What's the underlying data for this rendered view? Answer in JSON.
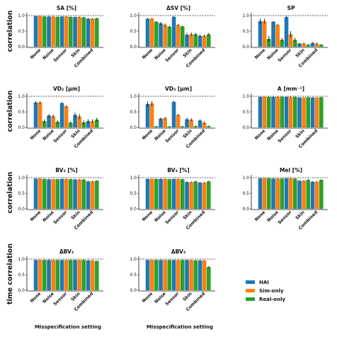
{
  "colors": {
    "HAI": "#1f77b4",
    "Sim-only": "#ff7f0e",
    "Real-only": "#2ca02c"
  },
  "figure": {
    "row_ylabels": [
      "correlation",
      "correlation",
      "correlation",
      "time correlation"
    ],
    "xlabel": "Misspecification setting",
    "legend": [
      "HAI",
      "Sim-only",
      "Real-only"
    ]
  },
  "chart_data": [
    {
      "type": "bar",
      "title": "SA [%]",
      "ylim": [
        0,
        1.0
      ],
      "yticks": [
        "0.0",
        "0.5",
        "1.0"
      ],
      "reference_line": 1.0,
      "categories": [
        "None",
        "Noise",
        "Sensor",
        "Skin",
        "Combined"
      ],
      "series": [
        {
          "name": "HAI",
          "values": [
            0.98,
            0.97,
            0.97,
            0.95,
            0.9
          ],
          "errors": [
            0.01,
            0.01,
            0.01,
            0.02,
            0.02
          ]
        },
        {
          "name": "Sim-only",
          "values": [
            0.98,
            0.97,
            0.97,
            0.95,
            0.9
          ],
          "errors": [
            0.01,
            0.01,
            0.01,
            0.02,
            0.02
          ]
        },
        {
          "name": "Real-only",
          "values": [
            0.97,
            0.96,
            0.96,
            0.94,
            0.91
          ],
          "errors": [
            0.01,
            0.01,
            0.01,
            0.02,
            0.02
          ]
        }
      ]
    },
    {
      "type": "bar",
      "title": "ΔSV [%]",
      "ylim": [
        0,
        1.0
      ],
      "yticks": [
        "0.0",
        "0.5",
        "1.0"
      ],
      "reference_line": 1.0,
      "categories": [
        "None",
        "Noise",
        "Sensor",
        "Skin",
        "Combined"
      ],
      "series": [
        {
          "name": "HAI",
          "values": [
            0.9,
            0.75,
            0.96,
            0.38,
            0.35
          ],
          "errors": [
            0.02,
            0.05,
            0.02,
            0.06,
            0.04
          ]
        },
        {
          "name": "Sim-only",
          "values": [
            0.9,
            0.7,
            0.7,
            0.4,
            0.35
          ],
          "errors": [
            0.02,
            0.05,
            0.03,
            0.06,
            0.04
          ]
        },
        {
          "name": "Real-only",
          "values": [
            0.8,
            0.64,
            0.65,
            0.4,
            0.4
          ],
          "errors": [
            0.02,
            0.04,
            0.03,
            0.05,
            0.04
          ]
        }
      ]
    },
    {
      "type": "bar",
      "title": "SP",
      "ylim": [
        0,
        1.0
      ],
      "yticks": [
        "0.0",
        "0.5",
        "1.0"
      ],
      "reference_line": 1.0,
      "categories": [
        "None",
        "Noise",
        "Sensor",
        "Skin",
        "Combined"
      ],
      "series": [
        {
          "name": "HAI",
          "values": [
            0.82,
            0.8,
            0.95,
            0.1,
            0.12
          ],
          "errors": [
            0.08,
            0.03,
            0.04,
            0.03,
            0.03
          ]
        },
        {
          "name": "Sim-only",
          "values": [
            0.82,
            0.7,
            0.4,
            0.1,
            0.1
          ],
          "errors": [
            0.08,
            0.03,
            0.1,
            0.03,
            0.03
          ]
        },
        {
          "name": "Real-only",
          "values": [
            0.25,
            0.22,
            0.22,
            0.06,
            0.06
          ],
          "errors": [
            0.1,
            0.06,
            0.06,
            0.03,
            0.03
          ]
        }
      ]
    },
    {
      "type": "bar",
      "title": "VD₂ [μm]",
      "ylim": [
        0,
        1.0
      ],
      "yticks": [
        "0.0",
        "0.5",
        "1.0"
      ],
      "reference_line": 1.0,
      "categories": [
        "None",
        "Noise",
        "Sensor",
        "Skin",
        "Combined"
      ],
      "series": [
        {
          "name": "HAI",
          "values": [
            0.8,
            0.38,
            0.78,
            0.4,
            0.2
          ],
          "errors": [
            0.04,
            0.05,
            0.03,
            0.08,
            0.06
          ]
        },
        {
          "name": "Sim-only",
          "values": [
            0.8,
            0.36,
            0.68,
            0.35,
            0.2
          ],
          "errors": [
            0.04,
            0.05,
            0.03,
            0.08,
            0.06
          ]
        },
        {
          "name": "Real-only",
          "values": [
            0.2,
            0.18,
            0.15,
            0.16,
            0.25
          ],
          "errors": [
            0.06,
            0.06,
            0.05,
            0.06,
            0.06
          ]
        }
      ]
    },
    {
      "type": "bar",
      "title": "VD₃ [μm]",
      "ylim": [
        0,
        1.0
      ],
      "yticks": [
        "0.0",
        "0.5",
        "1.0"
      ],
      "reference_line": 1.0,
      "categories": [
        "None",
        "Noise",
        "Sensor",
        "Skin",
        "Combined"
      ],
      "series": [
        {
          "name": "HAI",
          "values": [
            0.75,
            0.28,
            0.82,
            0.26,
            0.22
          ],
          "errors": [
            0.08,
            0.04,
            0.02,
            0.05,
            0.04
          ]
        },
        {
          "name": "Sim-only",
          "values": [
            0.77,
            0.3,
            0.4,
            0.25,
            0.15
          ],
          "errors": [
            0.08,
            0.04,
            0.03,
            0.05,
            0.04
          ]
        },
        {
          "name": "Real-only",
          "values": [
            0.03,
            0.03,
            0.03,
            0.04,
            0.04
          ],
          "errors": [
            0.02,
            0.02,
            0.02,
            0.02,
            0.02
          ]
        }
      ]
    },
    {
      "type": "bar",
      "title": "A [mm⁻¹]",
      "ylim": [
        0,
        1.0
      ],
      "yticks": [
        "0.0",
        "0.5",
        "1.0"
      ],
      "reference_line": 1.0,
      "categories": [
        "None",
        "Noise",
        "Sensor",
        "Skin",
        "Combined"
      ],
      "series": [
        {
          "name": "HAI",
          "values": [
            0.98,
            0.98,
            0.98,
            0.96,
            0.96
          ],
          "errors": [
            0.01,
            0.01,
            0.01,
            0.01,
            0.01
          ]
        },
        {
          "name": "Sim-only",
          "values": [
            0.98,
            0.98,
            0.98,
            0.96,
            0.96
          ],
          "errors": [
            0.01,
            0.01,
            0.01,
            0.01,
            0.01
          ]
        },
        {
          "name": "Real-only",
          "values": [
            0.98,
            0.98,
            0.98,
            0.97,
            0.97
          ],
          "errors": [
            0.01,
            0.01,
            0.01,
            0.01,
            0.01
          ]
        }
      ]
    },
    {
      "type": "bar",
      "title": "BV₂ [%]",
      "ylim": [
        0,
        1.0
      ],
      "yticks": [
        "0.0",
        "0.5",
        "1.0"
      ],
      "reference_line": 1.0,
      "categories": [
        "None",
        "Noise",
        "Sensor",
        "Skin",
        "Combined"
      ],
      "series": [
        {
          "name": "HAI",
          "values": [
            0.97,
            0.95,
            0.96,
            0.94,
            0.88
          ],
          "errors": [
            0.01,
            0.01,
            0.01,
            0.02,
            0.02
          ]
        },
        {
          "name": "Sim-only",
          "values": [
            0.97,
            0.95,
            0.96,
            0.94,
            0.88
          ],
          "errors": [
            0.01,
            0.01,
            0.01,
            0.02,
            0.02
          ]
        },
        {
          "name": "Real-only",
          "values": [
            0.96,
            0.95,
            0.95,
            0.94,
            0.9
          ],
          "errors": [
            0.01,
            0.01,
            0.01,
            0.02,
            0.02
          ]
        }
      ]
    },
    {
      "type": "bar",
      "title": "BV₃ [%]",
      "ylim": [
        0,
        1.0
      ],
      "yticks": [
        "0.0",
        "0.5",
        "1.0"
      ],
      "reference_line": 1.0,
      "categories": [
        "None",
        "Noise",
        "Sensor",
        "Skin",
        "Combined"
      ],
      "series": [
        {
          "name": "HAI",
          "values": [
            0.96,
            0.96,
            0.96,
            0.86,
            0.84
          ],
          "errors": [
            0.01,
            0.01,
            0.01,
            0.02,
            0.02
          ]
        },
        {
          "name": "Sim-only",
          "values": [
            0.96,
            0.96,
            0.96,
            0.86,
            0.84
          ],
          "errors": [
            0.01,
            0.01,
            0.01,
            0.02,
            0.02
          ]
        },
        {
          "name": "Real-only",
          "values": [
            0.96,
            0.95,
            0.95,
            0.88,
            0.88
          ],
          "errors": [
            0.01,
            0.01,
            0.01,
            0.02,
            0.02
          ]
        }
      ]
    },
    {
      "type": "bar",
      "title": "Mel [%]",
      "ylim": [
        0,
        1.0
      ],
      "yticks": [
        "0.0",
        "0.5",
        "1.0"
      ],
      "reference_line": 1.0,
      "categories": [
        "None",
        "Noise",
        "Sensor",
        "Skin",
        "Combined"
      ],
      "series": [
        {
          "name": "HAI",
          "values": [
            0.98,
            0.97,
            0.98,
            0.9,
            0.87
          ],
          "errors": [
            0.01,
            0.01,
            0.01,
            0.02,
            0.02
          ]
        },
        {
          "name": "Sim-only",
          "values": [
            0.98,
            0.97,
            0.98,
            0.9,
            0.87
          ],
          "errors": [
            0.01,
            0.01,
            0.01,
            0.02,
            0.02
          ]
        },
        {
          "name": "Real-only",
          "values": [
            0.98,
            0.97,
            0.97,
            0.93,
            0.93
          ],
          "errors": [
            0.01,
            0.01,
            0.01,
            0.02,
            0.02
          ]
        }
      ]
    },
    {
      "type": "bar",
      "title": "ΔBV₂",
      "ylim": [
        0,
        1.0
      ],
      "yticks": [
        "0.0",
        "0.5",
        "1.0"
      ],
      "reference_line": 1.0,
      "categories": [
        "None",
        "Noise",
        "Sensor",
        "Skin",
        "Combined"
      ],
      "series": [
        {
          "name": "HAI",
          "values": [
            0.97,
            0.97,
            0.97,
            0.97,
            0.96
          ],
          "errors": [
            0.01,
            0.01,
            0.01,
            0.01,
            0.01
          ]
        },
        {
          "name": "Sim-only",
          "values": [
            0.97,
            0.97,
            0.97,
            0.97,
            0.96
          ],
          "errors": [
            0.01,
            0.01,
            0.01,
            0.01,
            0.01
          ]
        },
        {
          "name": "Real-only",
          "values": [
            0.97,
            0.97,
            0.97,
            0.97,
            0.94
          ],
          "errors": [
            0.01,
            0.01,
            0.01,
            0.01,
            0.01
          ]
        }
      ]
    },
    {
      "type": "bar",
      "title": "ΔBV₃",
      "ylim": [
        0,
        1.0
      ],
      "yticks": [
        "0.0",
        "0.5",
        "1.0"
      ],
      "reference_line": 1.0,
      "categories": [
        "None",
        "Noise",
        "Sensor",
        "Skin",
        "Combined"
      ],
      "series": [
        {
          "name": "HAI",
          "values": [
            0.97,
            0.97,
            0.97,
            0.97,
            0.96
          ],
          "errors": [
            0.01,
            0.01,
            0.01,
            0.01,
            0.01
          ]
        },
        {
          "name": "Sim-only",
          "values": [
            0.97,
            0.97,
            0.97,
            0.97,
            0.96
          ],
          "errors": [
            0.01,
            0.01,
            0.01,
            0.01,
            0.01
          ]
        },
        {
          "name": "Real-only",
          "values": [
            0.97,
            0.97,
            0.97,
            0.96,
            0.75
          ],
          "errors": [
            0.01,
            0.01,
            0.01,
            0.01,
            0.02
          ]
        }
      ]
    }
  ]
}
